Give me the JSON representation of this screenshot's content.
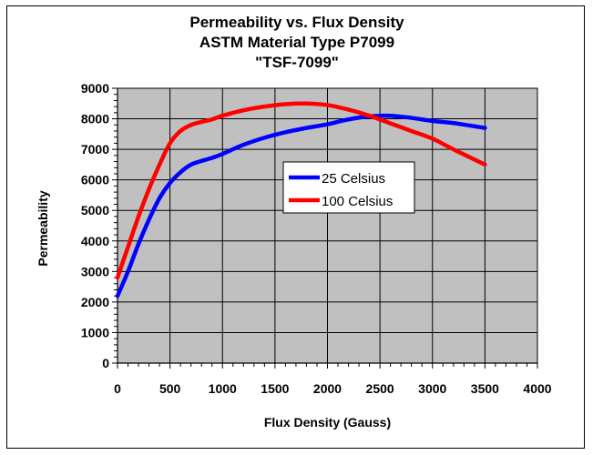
{
  "chart_data": {
    "type": "line",
    "title": [
      "Permeability vs. Flux Density",
      "ASTM Material Type P7099",
      "\"TSF-7099\""
    ],
    "xlabel": "Flux Density (Gauss)",
    "ylabel": "Permeability",
    "xlim": [
      0,
      4000
    ],
    "ylim": [
      0,
      9000
    ],
    "xticks": [
      0,
      500,
      1000,
      1500,
      2000,
      2500,
      3000,
      3500,
      4000
    ],
    "yticks": [
      0,
      1000,
      2000,
      3000,
      4000,
      5000,
      6000,
      7000,
      8000,
      9000
    ],
    "grid": true,
    "plot_background": "#c0c0c0",
    "legend_position": "center-right",
    "series": [
      {
        "name": "25 Celsius",
        "color": "#0000ff",
        "x": [
          0,
          100,
          200,
          300,
          400,
          500,
          600,
          700,
          800,
          900,
          1000,
          1200,
          1400,
          1600,
          1800,
          2000,
          2200,
          2400,
          2600,
          2800,
          3000,
          3200,
          3500
        ],
        "y": [
          2200,
          3000,
          3900,
          4700,
          5400,
          5900,
          6250,
          6500,
          6620,
          6720,
          6850,
          7150,
          7380,
          7560,
          7700,
          7820,
          7980,
          8080,
          8100,
          8030,
          7930,
          7860,
          7700
        ]
      },
      {
        "name": "100 Celsius",
        "color": "#ff0000",
        "x": [
          0,
          100,
          200,
          300,
          400,
          500,
          600,
          700,
          800,
          900,
          1000,
          1200,
          1400,
          1600,
          1800,
          2000,
          2200,
          2400,
          2600,
          2800,
          3000,
          3200,
          3500
        ],
        "y": [
          2800,
          3800,
          4800,
          5700,
          6500,
          7200,
          7600,
          7800,
          7900,
          7980,
          8100,
          8280,
          8400,
          8480,
          8500,
          8450,
          8300,
          8100,
          7850,
          7600,
          7350,
          7000,
          6500
        ]
      }
    ]
  }
}
